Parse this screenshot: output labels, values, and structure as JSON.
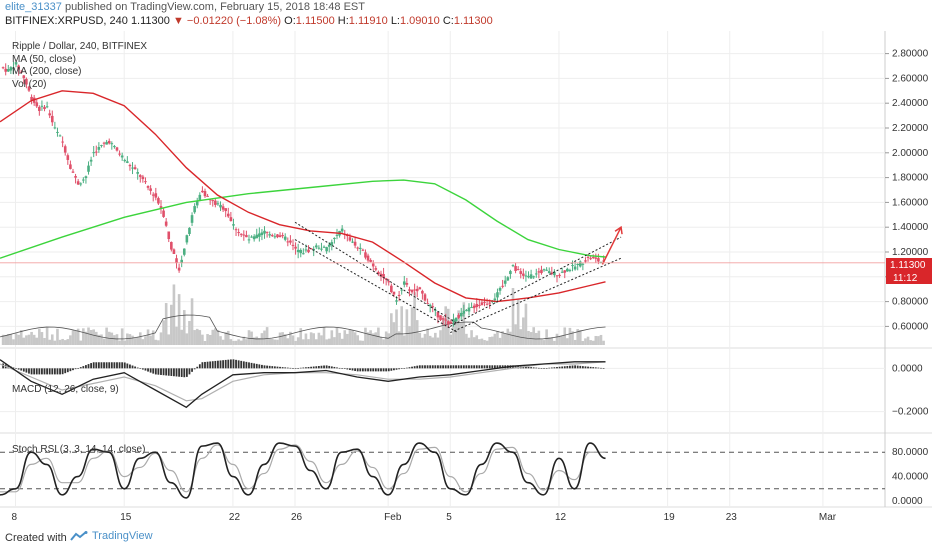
{
  "header": {
    "user": "elite_31337",
    "published_text": " published on TradingView.com, February 15, 2018 18:48 EST",
    "symbol": "BITFINEX:XRPUSD, 240",
    "price": "1.11300",
    "change": "▼ −0.01220 (−1.08%)",
    "o_label": "O:",
    "o_val": "1.11500",
    "h_label": "H:",
    "h_val": "1.11910",
    "l_label": "L:",
    "l_val": "1.09010",
    "c_label": "C:",
    "c_val": "1.11300"
  },
  "legend": {
    "title": "Ripple / Dollar, 240, BITFINEX",
    "ma50": "MA (50, close)",
    "ma200": "MA (200, close)",
    "vol": "Vol (20)",
    "macd": "MACD (12, 26, close, 9)",
    "stoch": "Stoch RSI (3, 3, 14, 14, close)"
  },
  "price_tag": {
    "price": "1.11300",
    "timer": "11:12"
  },
  "footer": {
    "created": "Created with",
    "brand": "TradingView"
  },
  "colors": {
    "up": "#4caf82",
    "down": "#e0506a",
    "ma50": "#d9262a",
    "ma200": "#3cd43c",
    "volume": "#c8c8c8",
    "macd": "#222222",
    "signal": "#b0b0b0",
    "grid": "#eeeeee",
    "arrow": "#e23a3a"
  },
  "chart_data": [
    {
      "type": "line",
      "title": "Ripple / Dollar, 240, BITFINEX",
      "description_series": [
        "candles",
        "MA (50, close)",
        "MA (200, close)",
        "Vol (20)"
      ],
      "ylim": [
        0.45,
        2.95
      ],
      "y_ticks": [
        "0.60000",
        "0.80000",
        "1.00000",
        "1.20000",
        "1.40000",
        "1.60000",
        "1.80000",
        "2.00000",
        "2.20000",
        "2.40000",
        "2.60000",
        "2.80000"
      ],
      "x_ticks": [
        "8",
        "15",
        "22",
        "26",
        "Feb",
        "5",
        "12",
        "19",
        "23",
        "Mar"
      ],
      "x_tick_days": [
        0,
        7,
        14,
        18,
        24,
        28,
        35,
        42,
        46,
        52
      ],
      "xlim_days": [
        -1,
        56
      ],
      "last_price": 1.113,
      "price_path": [
        [
          -1,
          2.7
        ],
        [
          -0.5,
          2.66
        ],
        [
          0,
          2.72
        ],
        [
          0.5,
          2.62
        ],
        [
          1,
          2.45
        ],
        [
          1.5,
          2.35
        ],
        [
          2,
          2.38
        ],
        [
          2.5,
          2.2
        ],
        [
          3,
          2.1
        ],
        [
          3.5,
          1.9
        ],
        [
          4,
          1.75
        ],
        [
          4.5,
          1.8
        ],
        [
          5,
          2.0
        ],
        [
          5.5,
          2.05
        ],
        [
          6,
          2.1
        ],
        [
          6.5,
          2.02
        ],
        [
          7,
          1.95
        ],
        [
          7.5,
          1.88
        ],
        [
          8,
          1.82
        ],
        [
          8.5,
          1.72
        ],
        [
          9,
          1.65
        ],
        [
          9.5,
          1.52
        ],
        [
          10,
          1.25
        ],
        [
          10.5,
          1.05
        ],
        [
          11,
          1.3
        ],
        [
          11.5,
          1.55
        ],
        [
          12,
          1.7
        ],
        [
          12.5,
          1.62
        ],
        [
          13,
          1.58
        ],
        [
          13.5,
          1.55
        ],
        [
          14,
          1.42
        ],
        [
          14.5,
          1.35
        ],
        [
          15,
          1.3
        ],
        [
          15.5,
          1.32
        ],
        [
          16,
          1.36
        ],
        [
          16.5,
          1.34
        ],
        [
          17,
          1.33
        ],
        [
          17.5,
          1.3
        ],
        [
          18,
          1.22
        ],
        [
          18.5,
          1.2
        ],
        [
          19,
          1.22
        ],
        [
          19.5,
          1.25
        ],
        [
          20,
          1.22
        ],
        [
          20.5,
          1.3
        ],
        [
          21,
          1.38
        ],
        [
          21.5,
          1.3
        ],
        [
          22,
          1.24
        ],
        [
          22.5,
          1.18
        ],
        [
          23,
          1.1
        ],
        [
          23.5,
          1.02
        ],
        [
          24,
          0.95
        ],
        [
          24.5,
          0.8
        ],
        [
          25,
          0.95
        ],
        [
          25.5,
          0.88
        ],
        [
          26,
          0.9
        ],
        [
          26.5,
          0.8
        ],
        [
          27,
          0.72
        ],
        [
          27.5,
          0.65
        ],
        [
          28,
          0.62
        ],
        [
          28.5,
          0.68
        ],
        [
          29,
          0.72
        ],
        [
          29.5,
          0.76
        ],
        [
          30,
          0.78
        ],
        [
          30.5,
          0.8
        ],
        [
          31,
          0.85
        ],
        [
          31.5,
          0.95
        ],
        [
          32,
          1.1
        ],
        [
          32.5,
          1.02
        ],
        [
          33,
          1.0
        ],
        [
          33.5,
          1.02
        ],
        [
          34,
          1.05
        ],
        [
          34.5,
          1.03
        ],
        [
          35,
          1.02
        ],
        [
          35.5,
          1.06
        ],
        [
          36,
          1.08
        ],
        [
          36.5,
          1.12
        ],
        [
          37,
          1.16
        ],
        [
          37.5,
          1.13
        ],
        [
          38,
          1.113
        ]
      ],
      "ma50_path": [
        [
          -1,
          2.25
        ],
        [
          1,
          2.42
        ],
        [
          3,
          2.5
        ],
        [
          5,
          2.48
        ],
        [
          7,
          2.38
        ],
        [
          9,
          2.15
        ],
        [
          11,
          1.88
        ],
        [
          13,
          1.66
        ],
        [
          15,
          1.52
        ],
        [
          17,
          1.42
        ],
        [
          19,
          1.37
        ],
        [
          21,
          1.35
        ],
        [
          23,
          1.28
        ],
        [
          25,
          1.12
        ],
        [
          27,
          0.95
        ],
        [
          29,
          0.83
        ],
        [
          31,
          0.8
        ],
        [
          33,
          0.83
        ],
        [
          35,
          0.87
        ],
        [
          37,
          0.93
        ],
        [
          38,
          0.96
        ]
      ],
      "ma200_path": [
        [
          -1,
          1.15
        ],
        [
          3,
          1.32
        ],
        [
          7,
          1.48
        ],
        [
          11,
          1.6
        ],
        [
          15,
          1.67
        ],
        [
          19,
          1.72
        ],
        [
          23,
          1.77
        ],
        [
          25,
          1.78
        ],
        [
          27,
          1.75
        ],
        [
          29,
          1.62
        ],
        [
          31,
          1.45
        ],
        [
          33,
          1.3
        ],
        [
          35,
          1.22
        ],
        [
          37,
          1.17
        ],
        [
          38,
          1.16
        ]
      ],
      "channel_lines": [
        [
          [
            18,
            1.44
          ],
          [
            28.5,
            0.62
          ]
        ],
        [
          [
            18,
            1.3
          ],
          [
            28.5,
            0.55
          ]
        ],
        [
          [
            28,
            0.6
          ],
          [
            39,
            1.32
          ]
        ],
        [
          [
            28,
            0.55
          ],
          [
            39,
            1.15
          ]
        ]
      ],
      "arrow": [
        [
          37.8,
          1.1
        ],
        [
          39,
          1.4
        ]
      ]
    },
    {
      "type": "line",
      "title": "MACD (12, 26, close, 9)",
      "ylim": [
        -0.28,
        0.08
      ],
      "y_ticks": [
        "0.0000",
        "−0.2000"
      ],
      "macd_path": [
        [
          -1,
          0.04
        ],
        [
          1,
          -0.06
        ],
        [
          3,
          -0.12
        ],
        [
          5,
          -0.05
        ],
        [
          7,
          -0.02
        ],
        [
          9,
          -0.1
        ],
        [
          11,
          -0.18
        ],
        [
          12,
          -0.12
        ],
        [
          14,
          -0.03
        ],
        [
          16,
          -0.02
        ],
        [
          18,
          -0.02
        ],
        [
          20,
          -0.01
        ],
        [
          22,
          -0.04
        ],
        [
          24,
          -0.06
        ],
        [
          26,
          -0.04
        ],
        [
          28,
          -0.03
        ],
        [
          30,
          -0.01
        ],
        [
          32,
          0.01
        ],
        [
          34,
          0.02
        ],
        [
          36,
          0.03
        ],
        [
          38,
          0.03
        ]
      ],
      "signal_path": [
        [
          -1,
          0.02
        ],
        [
          1,
          -0.04
        ],
        [
          3,
          -0.1
        ],
        [
          5,
          -0.07
        ],
        [
          7,
          -0.04
        ],
        [
          9,
          -0.08
        ],
        [
          11,
          -0.15
        ],
        [
          12,
          -0.14
        ],
        [
          14,
          -0.06
        ],
        [
          16,
          -0.03
        ],
        [
          18,
          -0.02
        ],
        [
          20,
          -0.02
        ],
        [
          22,
          -0.03
        ],
        [
          24,
          -0.05
        ],
        [
          26,
          -0.05
        ],
        [
          28,
          -0.04
        ],
        [
          30,
          -0.02
        ],
        [
          32,
          0.0
        ],
        [
          34,
          0.02
        ],
        [
          36,
          0.02
        ],
        [
          38,
          0.03
        ]
      ]
    },
    {
      "type": "line",
      "title": "Stoch RSI (3, 3, 14, 14, close)",
      "ylim": [
        -5,
        105
      ],
      "y_ticks": [
        "0.0000",
        "40.0000",
        "80.0000"
      ],
      "bands": [
        20,
        80
      ],
      "k_path": [
        [
          -1,
          10
        ],
        [
          0,
          20
        ],
        [
          1,
          80
        ],
        [
          2,
          60
        ],
        [
          3,
          10
        ],
        [
          4,
          40
        ],
        [
          5,
          85
        ],
        [
          6,
          80
        ],
        [
          7,
          20
        ],
        [
          8,
          70
        ],
        [
          9,
          80
        ],
        [
          10,
          30
        ],
        [
          11,
          5
        ],
        [
          12,
          90
        ],
        [
          13,
          95
        ],
        [
          14,
          40
        ],
        [
          15,
          10
        ],
        [
          16,
          60
        ],
        [
          17,
          95
        ],
        [
          18,
          90
        ],
        [
          19,
          50
        ],
        [
          20,
          20
        ],
        [
          21,
          80
        ],
        [
          22,
          85
        ],
        [
          23,
          40
        ],
        [
          24,
          10
        ],
        [
          25,
          60
        ],
        [
          26,
          95
        ],
        [
          27,
          80
        ],
        [
          28,
          20
        ],
        [
          29,
          10
        ],
        [
          30,
          60
        ],
        [
          31,
          95
        ],
        [
          32,
          80
        ],
        [
          33,
          30
        ],
        [
          34,
          10
        ],
        [
          35,
          70
        ],
        [
          36,
          20
        ],
        [
          37,
          95
        ],
        [
          38,
          70
        ]
      ],
      "d_path": [
        [
          -1,
          15
        ],
        [
          0,
          15
        ],
        [
          1,
          60
        ],
        [
          2,
          70
        ],
        [
          3,
          30
        ],
        [
          4,
          30
        ],
        [
          5,
          70
        ],
        [
          6,
          82
        ],
        [
          7,
          40
        ],
        [
          8,
          55
        ],
        [
          9,
          78
        ],
        [
          10,
          50
        ],
        [
          11,
          15
        ],
        [
          12,
          70
        ],
        [
          13,
          92
        ],
        [
          14,
          60
        ],
        [
          15,
          20
        ],
        [
          16,
          45
        ],
        [
          17,
          85
        ],
        [
          18,
          92
        ],
        [
          19,
          65
        ],
        [
          20,
          30
        ],
        [
          21,
          60
        ],
        [
          22,
          82
        ],
        [
          23,
          55
        ],
        [
          24,
          20
        ],
        [
          25,
          45
        ],
        [
          26,
          85
        ],
        [
          27,
          88
        ],
        [
          28,
          40
        ],
        [
          29,
          15
        ],
        [
          30,
          45
        ],
        [
          31,
          85
        ],
        [
          32,
          88
        ],
        [
          33,
          45
        ],
        [
          34,
          18
        ],
        [
          35,
          50
        ],
        [
          36,
          35
        ],
        [
          37,
          80
        ],
        [
          38,
          80
        ]
      ]
    }
  ]
}
